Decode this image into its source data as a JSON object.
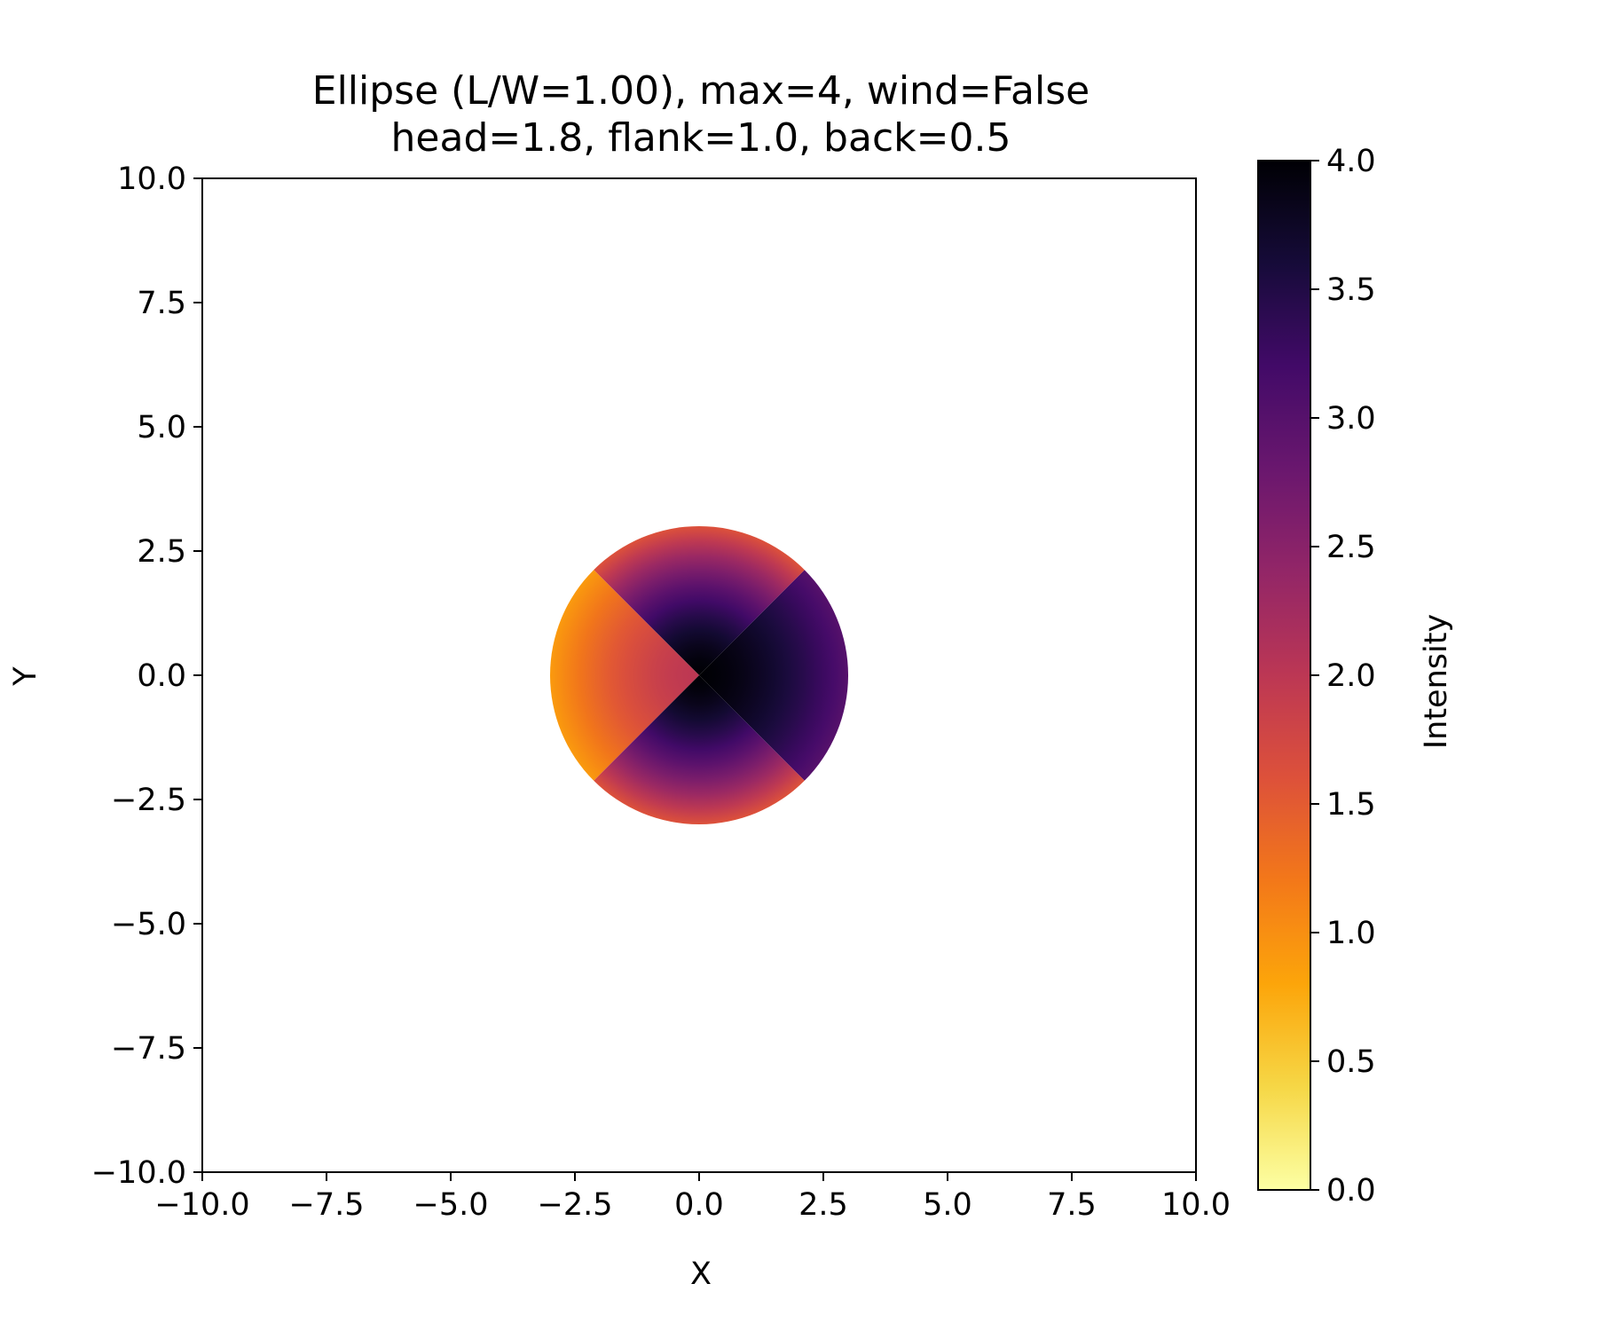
{
  "chart_data": {
    "type": "heatmap",
    "title": "Ellipse (L/W=1.00), max=4, wind=False",
    "subtitle": "head=1.8, flank=1.0, back=0.5",
    "xlabel": "X",
    "ylabel": "Y",
    "xlim": [
      -10.0,
      10.0
    ],
    "ylim": [
      -10.0,
      10.0
    ],
    "xticks": [
      -10.0,
      -7.5,
      -5.0,
      -2.5,
      0.0,
      2.5,
      5.0,
      7.5,
      10.0
    ],
    "xtick_labels": [
      "−10.0",
      "−7.5",
      "−5.0",
      "−2.5",
      "0.0",
      "2.5",
      "5.0",
      "7.5",
      "10.0"
    ],
    "yticks": [
      -10.0,
      -7.5,
      -5.0,
      -2.5,
      0.0,
      2.5,
      5.0,
      7.5,
      10.0
    ],
    "ytick_labels": [
      "−10.0",
      "−7.5",
      "−5.0",
      "−2.5",
      "0.0",
      "2.5",
      "5.0",
      "7.5",
      "10.0"
    ],
    "grid": false,
    "colormap": "inferno_r",
    "colorbar": {
      "label": "Intensity",
      "vmin": 0.0,
      "vmax": 4.0,
      "ticks": [
        0.0,
        0.5,
        1.0,
        1.5,
        2.0,
        2.5,
        3.0,
        3.5,
        4.0
      ],
      "tick_labels": [
        "0.0",
        "0.5",
        "1.0",
        "1.5",
        "2.0",
        "2.5",
        "3.0",
        "3.5",
        "4.0"
      ]
    },
    "shape": {
      "center": [
        0.0,
        0.0
      ],
      "radius": 3.0,
      "sectors": [
        {
          "name": "head",
          "from_deg": -45,
          "to_deg": 45,
          "center_value": 4.0,
          "edge_value": 3.0
        },
        {
          "name": "flank",
          "from_deg": 45,
          "to_deg": 135,
          "center_value": 4.0,
          "edge_value": 1.6
        },
        {
          "name": "back",
          "from_deg": 135,
          "to_deg": 225,
          "center_value": 2.0,
          "edge_value": 0.9
        },
        {
          "name": "flank",
          "from_deg": 225,
          "to_deg": 315,
          "center_value": 4.0,
          "edge_value": 1.6
        }
      ]
    }
  }
}
